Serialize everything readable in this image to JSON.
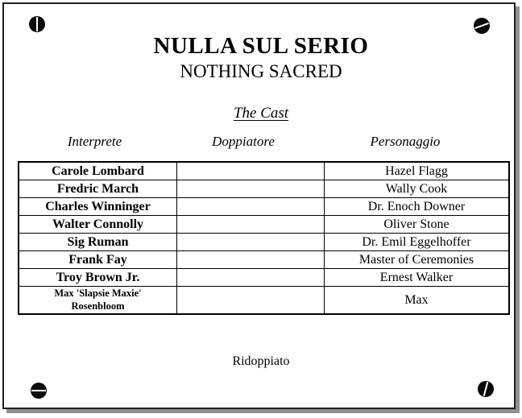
{
  "page": {
    "title": "NULLA SUL SERIO",
    "subtitle": "NOTHING SACRED",
    "section_heading": "The Cast",
    "footer_note": "Ridoppiato"
  },
  "cast_table": {
    "columns": [
      "Interprete",
      "Doppiatore",
      "Personaggio"
    ],
    "rows": [
      {
        "interprete": "Carole Lombard",
        "doppiatore": "",
        "personaggio": "Hazel Flagg",
        "small": false
      },
      {
        "interprete": "Fredric March",
        "doppiatore": "",
        "personaggio": "Wally Cook",
        "small": false
      },
      {
        "interprete": "Charles Winninger",
        "doppiatore": "",
        "personaggio": "Dr. Enoch Downer",
        "small": false
      },
      {
        "interprete": "Walter Connolly",
        "doppiatore": "",
        "personaggio": "Oliver Stone",
        "small": false
      },
      {
        "interprete": "Sig Ruman",
        "doppiatore": "",
        "personaggio": "Dr. Emil Eggelhoffer",
        "small": false
      },
      {
        "interprete": "Frank Fay",
        "doppiatore": "",
        "personaggio": "Master of Ceremonies",
        "small": false
      },
      {
        "interprete": "Troy Brown Jr.",
        "doppiatore": "",
        "personaggio": "Ernest Walker",
        "small": false
      },
      {
        "interprete": "Max 'Slapsie Maxie' Rosenbloom",
        "doppiatore": "",
        "personaggio": "Max",
        "small": true
      }
    ]
  },
  "icons": {
    "screws": [
      "screw-icon-top-left",
      "screw-icon-top-right",
      "screw-icon-bottom-left",
      "screw-icon-bottom-right"
    ]
  },
  "colors": {
    "ink": "#000000",
    "paper": "#ffffff",
    "plate_border": "#1f1f1f",
    "plate_shadow": "#8f8f8f"
  }
}
